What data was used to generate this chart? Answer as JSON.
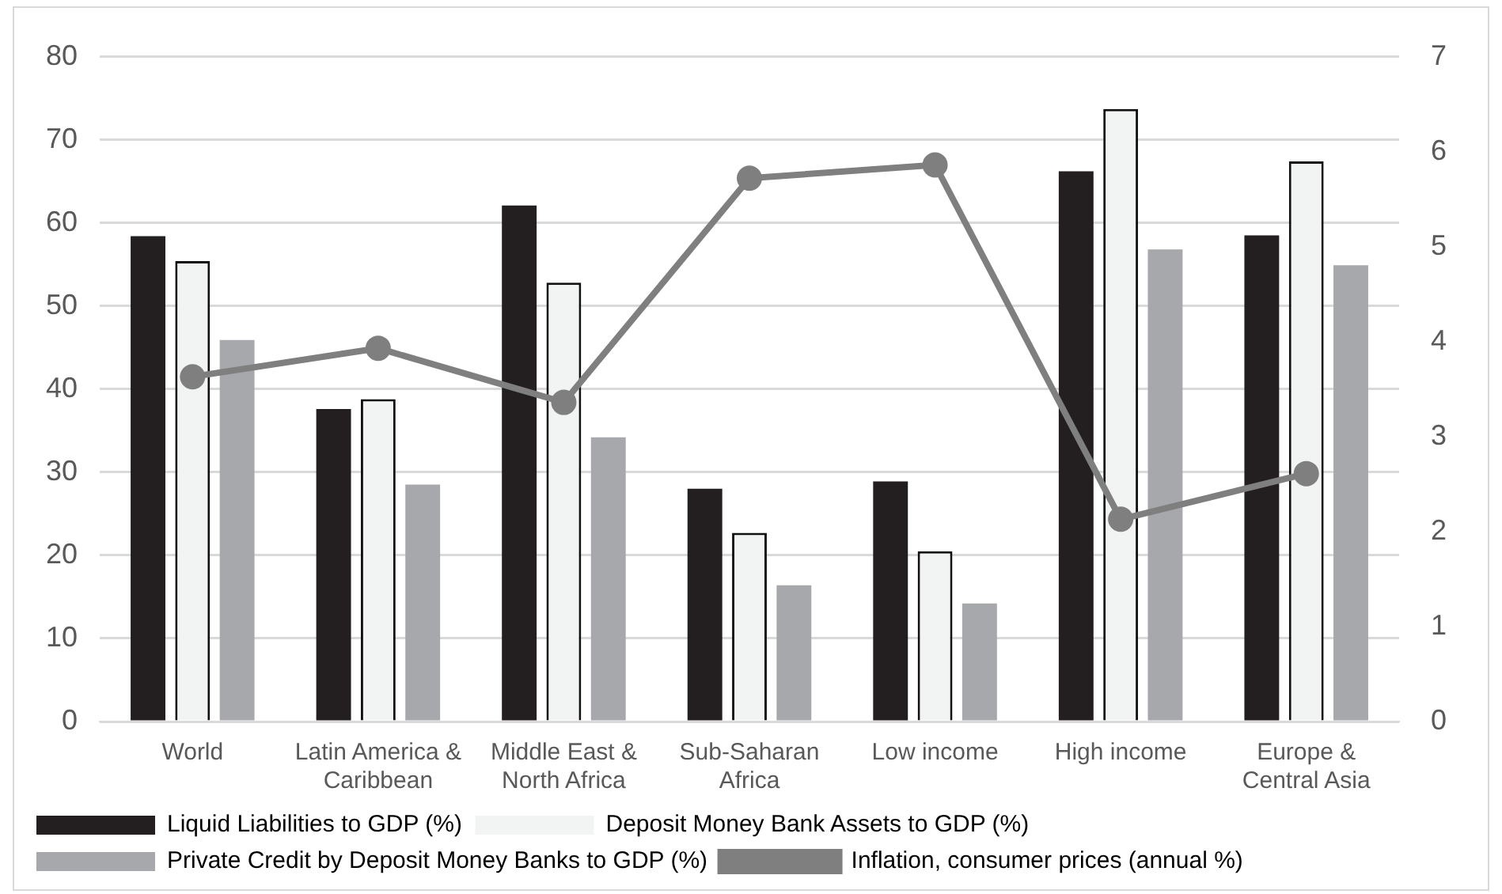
{
  "chart_data": {
    "type": "bar",
    "categories": [
      "World",
      "Latin America & Caribbean",
      "Middle East & North Africa",
      "Sub-Saharan Africa",
      "Low income",
      "High income",
      "Europe & Central Asia"
    ],
    "series": [
      {
        "name": "Liquid Liabilities to GDP (%)",
        "color": "#231f20",
        "values": [
          58.4,
          37.6,
          62.1,
          28.0,
          28.9,
          66.2,
          58.5
        ]
      },
      {
        "name": "Deposit Money Bank Assets to GDP (%)",
        "color": "#f2f4f3",
        "values": [
          55.4,
          38.8,
          52.8,
          22.7,
          20.5,
          73.7,
          67.4
        ]
      },
      {
        "name": "Private Credit by Deposit Money Banks to GDP (%)",
        "color": "#a7a8ab",
        "values": [
          45.9,
          28.5,
          34.2,
          16.4,
          14.2,
          56.8,
          54.9
        ]
      },
      {
        "name": "Inflation, consumer prices (annual %)",
        "type": "line",
        "axis": "y2",
        "color": "#7f7f80",
        "values": [
          3.63,
          3.93,
          3.36,
          5.72,
          5.86,
          2.13,
          2.61
        ]
      }
    ],
    "ylim": [
      0,
      80
    ],
    "yticks": [
      0,
      10,
      20,
      30,
      40,
      50,
      60,
      70,
      80
    ],
    "y2lim": [
      0,
      7
    ],
    "y2ticks": [
      0,
      1,
      2,
      3,
      4,
      5,
      6,
      7
    ],
    "grid": "y",
    "legend": "bottom",
    "marker": "circle"
  }
}
